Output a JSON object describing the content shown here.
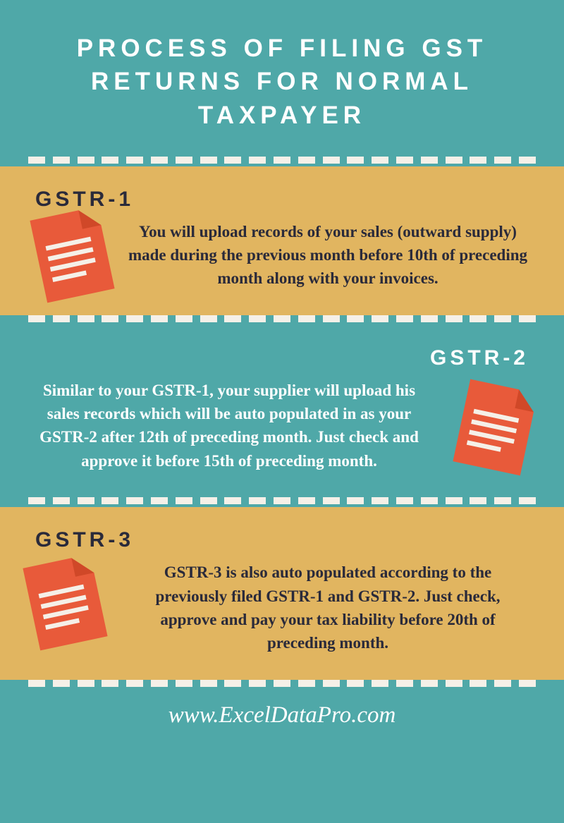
{
  "header": {
    "title": "PROCESS OF FILING GST RETURNS FOR NORMAL TAXPAYER"
  },
  "sections": [
    {
      "heading": "GSTR-1",
      "body": "You will upload records of your sales (outward supply) made during the previous month before 10th of preceding month along with your invoices.",
      "bg_color": "#e1b560",
      "text_color": "#2a2a3a",
      "heading_align": "left",
      "icon_position": "top-left"
    },
    {
      "heading": "GSTR-2",
      "body": "Similar to your GSTR-1, your supplier will upload his sales records which will be auto populated in as your GSTR-2 after 12th of preceding month.  Just check and approve it before 15th of preceding month.",
      "bg_color": "#4fa8a8",
      "text_color": "#ffffff",
      "heading_align": "right",
      "icon_position": "mid-right"
    },
    {
      "heading": "GSTR-3",
      "body": "GSTR-3 is also auto populated according to the previously filed GSTR-1 and GSTR-2. Just check, approve and pay your tax liability before 20th of preceding month.",
      "bg_color": "#e1b560",
      "text_color": "#2a2a3a",
      "heading_align": "left",
      "icon_position": "bot-left"
    }
  ],
  "footer": {
    "url": "www.ExcelDataPro.com"
  },
  "colors": {
    "teal": "#4fa8a8",
    "yellow": "#e1b560",
    "icon_fill": "#e85a3a",
    "icon_fold": "#d04828",
    "icon_line": "#f5f0e8",
    "dash": "#f5f0e8",
    "white": "#ffffff",
    "dark": "#2a2a3a"
  },
  "dash_count": 21
}
